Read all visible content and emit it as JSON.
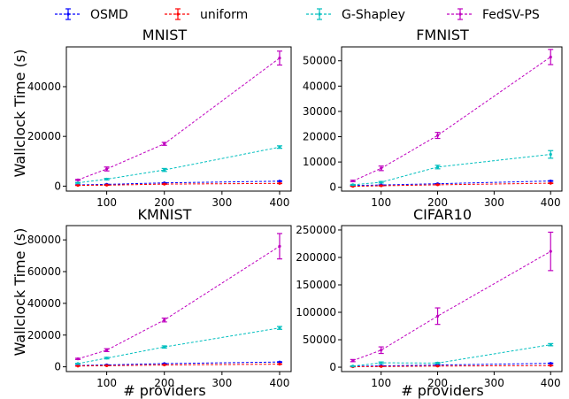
{
  "legend": [
    {
      "name": "OSMD",
      "color": "#0000ff"
    },
    {
      "name": "uniform",
      "color": "#ff0000"
    },
    {
      "name": "G-Shapley",
      "color": "#00bfbf"
    },
    {
      "name": "FedSV-PS",
      "color": "#bf00bf"
    }
  ],
  "shared_ylabel": "Wallclock Time (s)",
  "shared_xlabel": "# providers",
  "chart_data": [
    {
      "type": "line",
      "title": "MNIST",
      "x": [
        50,
        100,
        200,
        400
      ],
      "xlim": [
        30,
        420
      ],
      "ylim": [
        -2000,
        56000
      ],
      "yticks": [
        0,
        20000,
        40000
      ],
      "xticks": [
        100,
        200,
        300,
        400
      ],
      "xlabel": "",
      "ylabel": "Wallclock Time (s)",
      "series": [
        {
          "name": "OSMD",
          "color": "#0000ff",
          "values": [
            500,
            700,
            1300,
            2000
          ],
          "err": [
            50,
            60,
            80,
            100
          ]
        },
        {
          "name": "uniform",
          "color": "#ff0000",
          "values": [
            300,
            400,
            800,
            1100
          ],
          "err": [
            40,
            50,
            60,
            80
          ]
        },
        {
          "name": "G-Shapley",
          "color": "#00bfbf",
          "values": [
            1300,
            2800,
            6500,
            15700
          ],
          "err": [
            150,
            300,
            600,
            500
          ]
        },
        {
          "name": "FedSV-PS",
          "color": "#bf00bf",
          "values": [
            2500,
            6900,
            17000,
            51500
          ],
          "err": [
            200,
            800,
            600,
            2800
          ]
        }
      ]
    },
    {
      "type": "line",
      "title": "FMNIST",
      "x": [
        50,
        100,
        200,
        400
      ],
      "xlim": [
        30,
        420
      ],
      "ylim": [
        -1500,
        55500
      ],
      "yticks": [
        0,
        10000,
        20000,
        30000,
        40000,
        50000
      ],
      "xticks": [
        100,
        200,
        300,
        400
      ],
      "xlabel": "",
      "ylabel": "",
      "series": [
        {
          "name": "OSMD",
          "color": "#0000ff",
          "values": [
            700,
            900,
            1400,
            2500
          ],
          "err": [
            50,
            60,
            80,
            120
          ]
        },
        {
          "name": "uniform",
          "color": "#ff0000",
          "values": [
            400,
            600,
            1000,
            1600
          ],
          "err": [
            40,
            50,
            60,
            80
          ]
        },
        {
          "name": "G-Shapley",
          "color": "#00bfbf",
          "values": [
            1000,
            2000,
            8000,
            13000
          ],
          "err": [
            150,
            300,
            700,
            1500
          ]
        },
        {
          "name": "FedSV-PS",
          "color": "#bf00bf",
          "values": [
            2500,
            7500,
            20500,
            51500
          ],
          "err": [
            300,
            900,
            1200,
            3000
          ]
        }
      ]
    },
    {
      "type": "line",
      "title": "KMNIST",
      "x": [
        50,
        100,
        200,
        400
      ],
      "xlim": [
        30,
        420
      ],
      "ylim": [
        -3000,
        89000
      ],
      "yticks": [
        0,
        20000,
        40000,
        60000,
        80000
      ],
      "xticks": [
        100,
        200,
        300,
        400
      ],
      "xlabel": "# providers",
      "ylabel": "Wallclock Time (s)",
      "series": [
        {
          "name": "OSMD",
          "color": "#0000ff",
          "values": [
            800,
            1200,
            2000,
            3000
          ],
          "err": [
            60,
            80,
            100,
            150
          ]
        },
        {
          "name": "uniform",
          "color": "#ff0000",
          "values": [
            500,
            700,
            1200,
            1700
          ],
          "err": [
            40,
            50,
            70,
            90
          ]
        },
        {
          "name": "G-Shapley",
          "color": "#00bfbf",
          "values": [
            2000,
            5500,
            12500,
            24500
          ],
          "err": [
            200,
            500,
            700,
            900
          ]
        },
        {
          "name": "FedSV-PS",
          "color": "#bf00bf",
          "values": [
            5000,
            10500,
            29500,
            76000
          ],
          "err": [
            400,
            900,
            1200,
            8000
          ]
        }
      ]
    },
    {
      "type": "line",
      "title": "CIFAR10",
      "x": [
        50,
        100,
        200,
        400
      ],
      "xlim": [
        30,
        420
      ],
      "ylim": [
        -8000,
        258000
      ],
      "yticks": [
        0,
        50000,
        100000,
        150000,
        200000,
        250000
      ],
      "xticks": [
        100,
        200,
        300,
        400
      ],
      "xlabel": "# providers",
      "ylabel": "",
      "series": [
        {
          "name": "OSMD",
          "color": "#0000ff",
          "values": [
            1500,
            2500,
            4000,
            7000
          ],
          "err": [
            150,
            200,
            300,
            500
          ]
        },
        {
          "name": "uniform",
          "color": "#ff0000",
          "values": [
            800,
            1200,
            2000,
            3000
          ],
          "err": [
            80,
            100,
            150,
            200
          ]
        },
        {
          "name": "G-Shapley",
          "color": "#00bfbf",
          "values": [
            2000,
            8000,
            7500,
            41000
          ],
          "err": [
            500,
            1500,
            1000,
            2000
          ]
        },
        {
          "name": "FedSV-PS",
          "color": "#bf00bf",
          "values": [
            12000,
            31000,
            93000,
            211000
          ],
          "err": [
            2000,
            6000,
            15000,
            35000
          ]
        }
      ]
    }
  ]
}
